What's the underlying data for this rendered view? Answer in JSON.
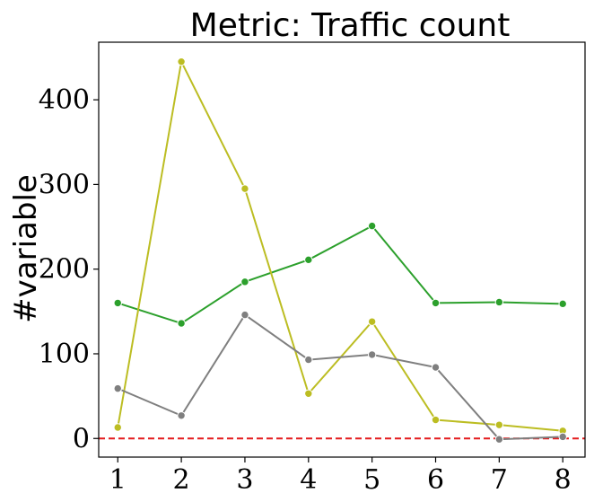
{
  "chart_data": {
    "type": "line",
    "title": "Metric: Traffic count",
    "xlabel": "",
    "ylabel": "#variable",
    "x": [
      1,
      2,
      3,
      4,
      5,
      6,
      7,
      8
    ],
    "xticks": [
      "1",
      "2",
      "3",
      "4",
      "5",
      "6",
      "7",
      "8"
    ],
    "yticks": [
      "0",
      "100",
      "200",
      "300",
      "400"
    ],
    "xlim": [
      0.7,
      8.35
    ],
    "ylim": [
      -22,
      468
    ],
    "grid": false,
    "legend": false,
    "reference_line": {
      "y": 0,
      "color": "#e41a1c",
      "style": "dashed"
    },
    "series": [
      {
        "color": "#2ca02c",
        "values": [
          160,
          136,
          185,
          211,
          251,
          160,
          161,
          159
        ]
      },
      {
        "color": "#bcbd22",
        "values": [
          13,
          445,
          295,
          53,
          138,
          22,
          16,
          9
        ]
      },
      {
        "color": "#7f7f7f",
        "values": [
          59,
          27,
          146,
          93,
          99,
          84,
          -1,
          2
        ]
      }
    ]
  }
}
